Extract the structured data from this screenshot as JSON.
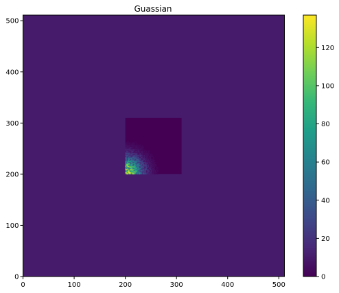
{
  "chart_data": {
    "type": "heatmap",
    "title": "Guassian",
    "xlabel": "",
    "ylabel": "",
    "xlim": [
      0,
      511
    ],
    "ylim": [
      0,
      511
    ],
    "x_ticks": [
      0,
      100,
      200,
      300,
      400,
      500
    ],
    "y_ticks": [
      0,
      100,
      200,
      300,
      400,
      500
    ],
    "colormap": "viridis",
    "background_value": 10,
    "region": {
      "x_range": [
        200,
        310
      ],
      "y_range": [
        200,
        310
      ],
      "base_value": 0,
      "gaussian_peak_value": 135,
      "gaussian_center": [
        200,
        200
      ],
      "gaussian_sigma": 22
    },
    "colorbar": {
      "range": [
        0,
        137
      ],
      "ticks": [
        0,
        20,
        40,
        60,
        80,
        100,
        120
      ]
    },
    "colors": {
      "viridis": [
        "#440154",
        "#482878",
        "#3e4989",
        "#31688e",
        "#26828e",
        "#1f9e89",
        "#35b779",
        "#6ece58",
        "#b5de2b",
        "#fde725"
      ]
    }
  }
}
